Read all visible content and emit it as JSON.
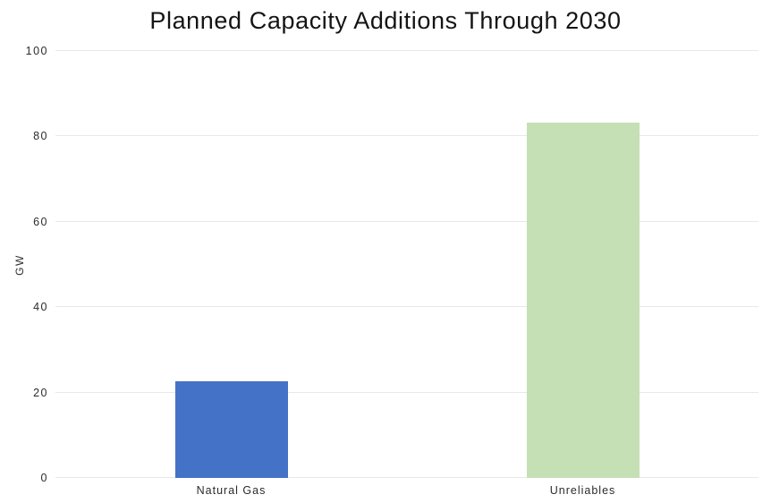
{
  "chart_data": {
    "type": "bar",
    "title": "Planned Capacity Additions Through 2030",
    "categories": [
      "Natural Gas",
      "Unreliables"
    ],
    "values": [
      22.6,
      83.2
    ],
    "xlabel": "",
    "ylabel": "GW",
    "ylim": [
      0,
      100
    ],
    "yticks": [
      0,
      20,
      40,
      60,
      80,
      100
    ],
    "grid": true,
    "legend_position": "none",
    "bar_colors": [
      "#4472C6",
      "#C5E0B4"
    ],
    "colors": {
      "background": "#ffffff",
      "gridline": "#e8e8e8",
      "axis_text": "#2b2b2b",
      "title_text": "#141414"
    }
  }
}
